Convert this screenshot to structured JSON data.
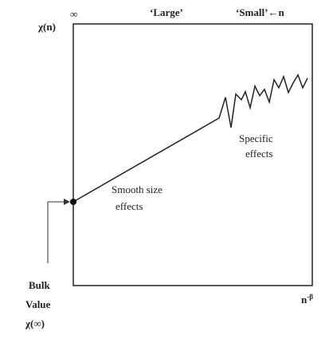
{
  "y_label": "χ(n)",
  "top_left": "∞",
  "regions": {
    "large": "‘Large’",
    "small": "‘Small’←n"
  },
  "x_label": {
    "base": "n",
    "exponent": "-β"
  },
  "annotations": {
    "specific": [
      "Specific",
      "effects"
    ],
    "smooth": [
      "Smooth size",
      "effects"
    ],
    "bulk": [
      "Bulk",
      "Value",
      "χ(∞)"
    ]
  }
}
